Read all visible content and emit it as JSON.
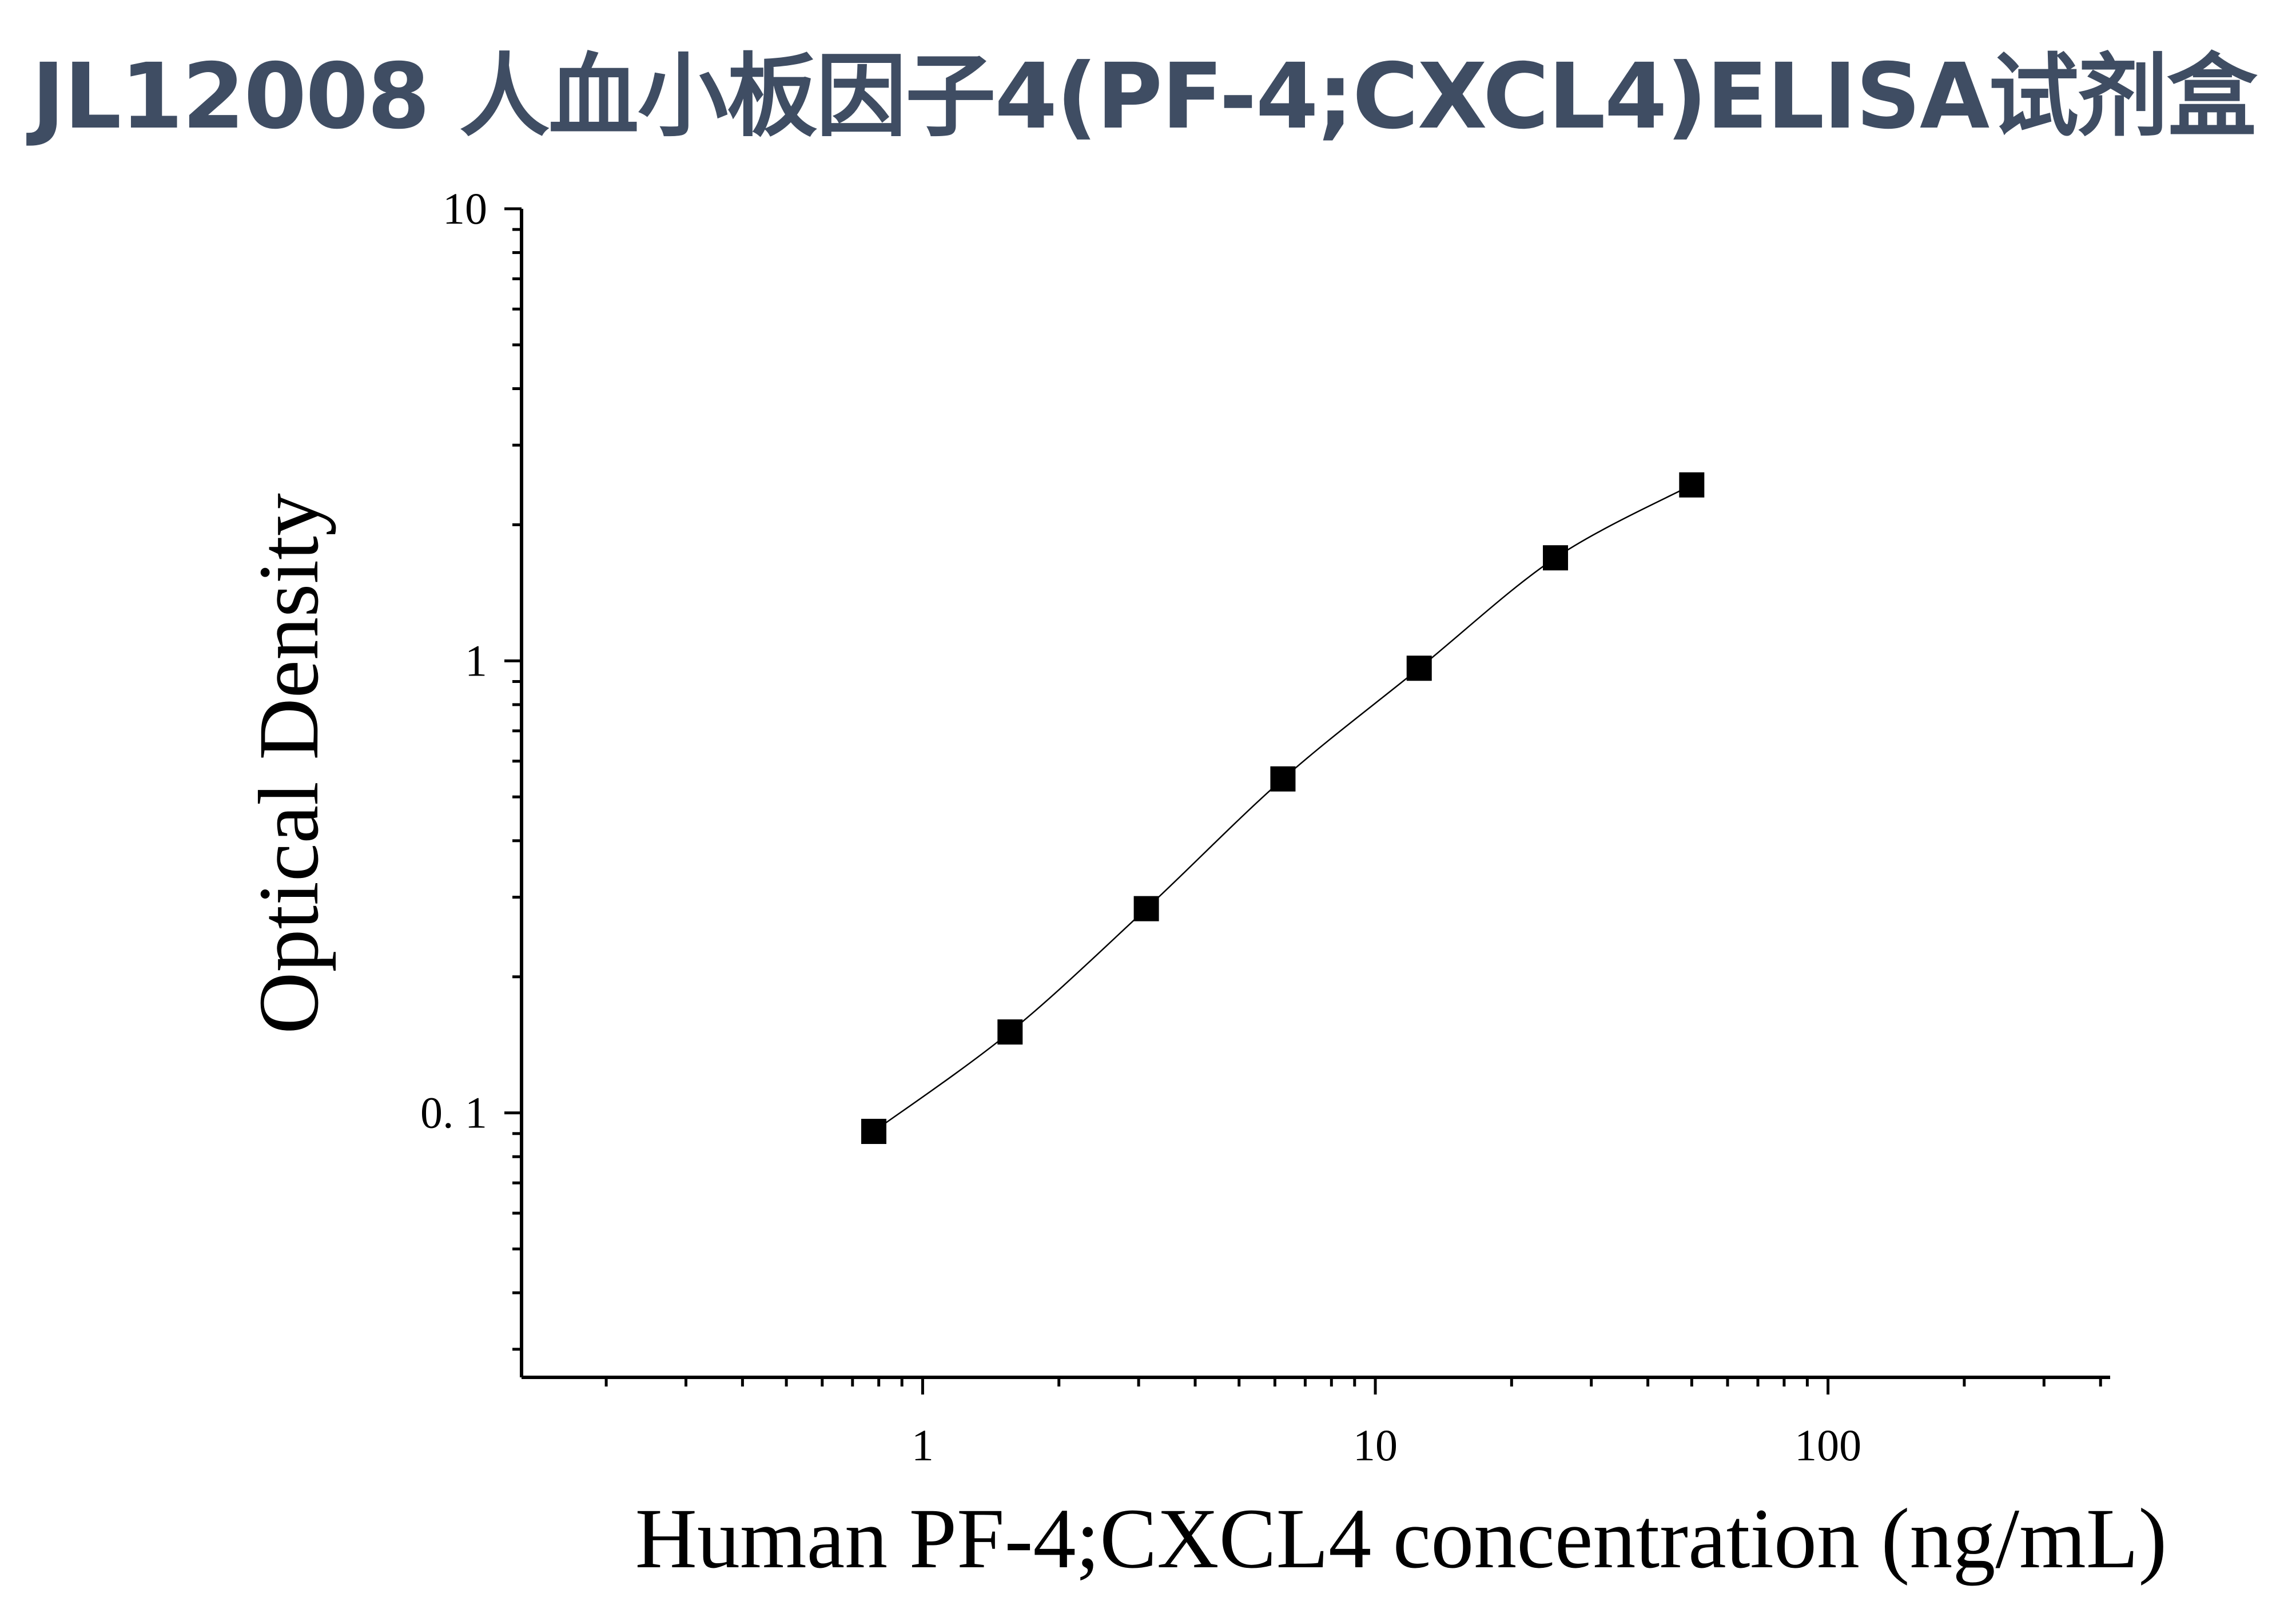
{
  "title": "JL12008 人血小板因子4(PF-4;CXCL4)ELISA试剂盒",
  "chart_data": {
    "type": "scatter",
    "xlabel": "Human PF-4;CXCL4 concentration (ng/mL)",
    "ylabel": "Optical Density",
    "x_scale": "log",
    "y_scale": "log",
    "xlim": [
      0.13,
      420
    ],
    "ylim": [
      0.026,
      10
    ],
    "x_ticks": [
      1,
      10,
      100
    ],
    "x_tick_labels": [
      "1",
      "10",
      "100"
    ],
    "y_ticks": [
      0.1,
      1,
      10
    ],
    "y_tick_labels": [
      "0. 1",
      "1",
      "10"
    ],
    "grid": false,
    "series": [
      {
        "marker": "square",
        "x": [
          0.78,
          1.56,
          3.12,
          6.25,
          12.5,
          25,
          50
        ],
        "y": [
          0.091,
          0.151,
          0.283,
          0.548,
          0.963,
          1.69,
          2.45
        ]
      }
    ]
  }
}
